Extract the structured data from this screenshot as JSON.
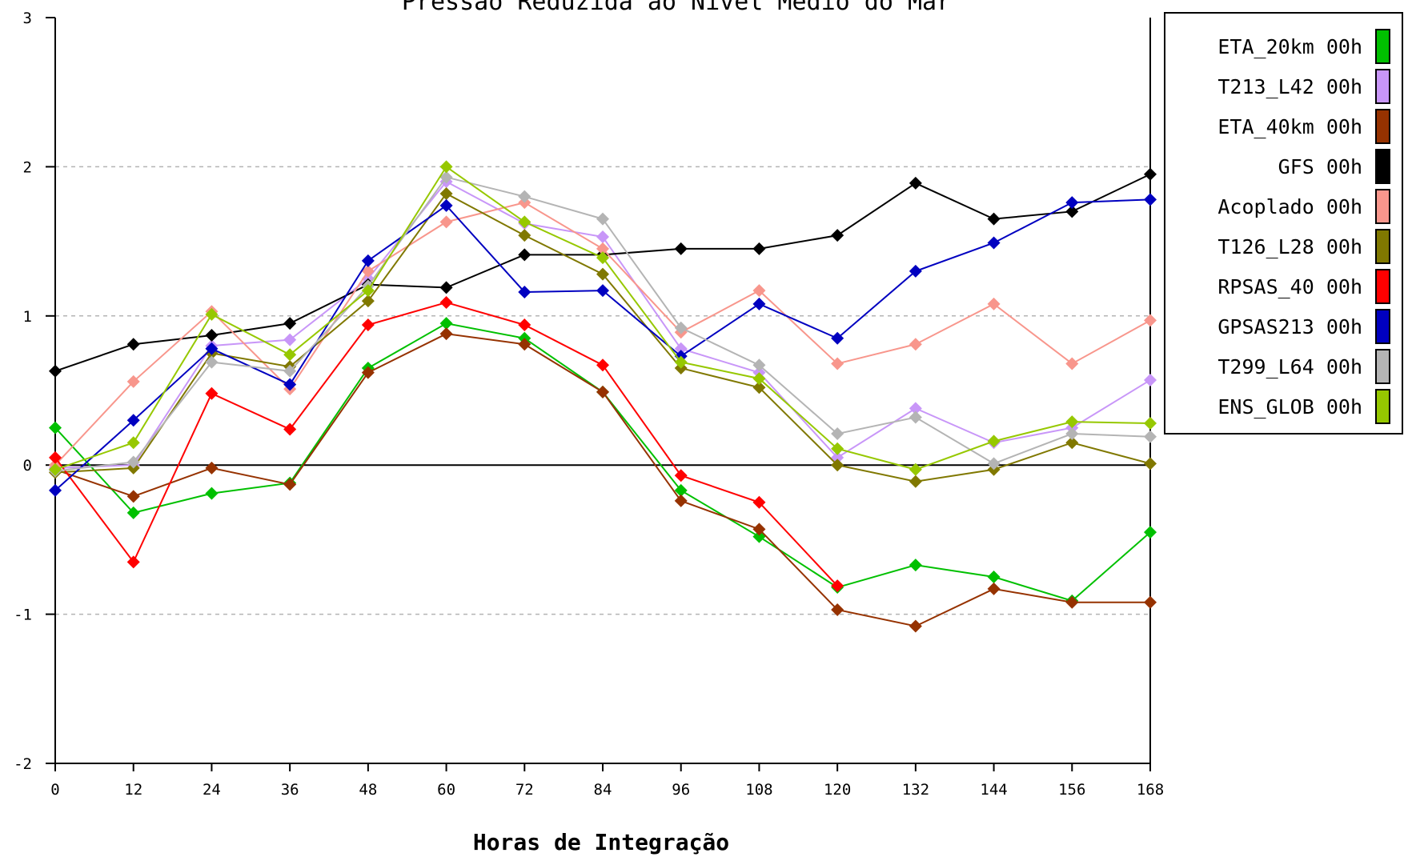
{
  "chart_data": {
    "type": "line",
    "title": "Pressão Reduzida ao Nível Médio do Mar",
    "xlabel": "Horas de Integração",
    "ylabel": "",
    "x": [
      0,
      12,
      24,
      36,
      48,
      60,
      72,
      84,
      96,
      108,
      120,
      132,
      144,
      156,
      168
    ],
    "xlim": [
      0,
      168
    ],
    "ylim": [
      -2,
      3
    ],
    "yticks": [
      -2,
      -1,
      0,
      1,
      2,
      3
    ],
    "grid": "horizontal dashed at -1, 1, 2; solid zero line",
    "legend_position": "right",
    "series": [
      {
        "name": "ETA_20km 00h",
        "color": "#00c000",
        "values": [
          0.25,
          -0.32,
          -0.19,
          -0.12,
          0.65,
          0.95,
          0.85,
          0.49,
          -0.17,
          -0.48,
          -0.82,
          -0.67,
          -0.75,
          -0.91,
          -0.45
        ]
      },
      {
        "name": "T213_L42 00h",
        "color": "#c896f8",
        "values": [
          -0.02,
          0.0,
          0.8,
          0.84,
          1.25,
          1.9,
          1.62,
          1.53,
          0.78,
          0.62,
          0.05,
          0.38,
          0.15,
          0.25,
          0.57
        ]
      },
      {
        "name": "ETA_40km 00h",
        "color": "#963200",
        "values": [
          -0.03,
          -0.21,
          -0.02,
          -0.13,
          0.62,
          0.88,
          0.81,
          0.49,
          -0.24,
          -0.43,
          -0.97,
          -1.08,
          -0.83,
          -0.92,
          -0.92
        ]
      },
      {
        "name": "GFS 00h",
        "color": "#000000",
        "values": [
          0.63,
          0.81,
          0.87,
          0.95,
          1.21,
          1.19,
          1.41,
          1.41,
          1.45,
          1.45,
          1.54,
          1.89,
          1.65,
          1.7,
          1.95
        ]
      },
      {
        "name": "Acoplado 00h",
        "color": "#f8968c",
        "values": [
          0.0,
          0.56,
          1.03,
          0.51,
          1.3,
          1.63,
          1.76,
          1.45,
          0.89,
          1.17,
          0.68,
          0.81,
          1.08,
          0.68,
          0.97
        ]
      },
      {
        "name": "T126_L28 00h",
        "color": "#807800",
        "values": [
          -0.05,
          -0.02,
          0.75,
          0.66,
          1.1,
          1.82,
          1.54,
          1.28,
          0.65,
          0.52,
          0.0,
          -0.11,
          -0.03,
          0.15,
          0.01
        ]
      },
      {
        "name": "RPSAS_40 00h",
        "color": "#ff0000",
        "values": [
          0.05,
          -0.65,
          0.48,
          0.24,
          0.94,
          1.09,
          0.94,
          0.67,
          -0.07,
          -0.25,
          -0.81,
          null,
          null,
          null,
          null
        ]
      },
      {
        "name": "GPSAS213 00h",
        "color": "#0000c0",
        "values": [
          -0.17,
          0.3,
          0.78,
          0.54,
          1.37,
          1.74,
          1.16,
          1.17,
          0.73,
          1.08,
          0.85,
          1.3,
          1.49,
          1.76,
          1.78
        ]
      },
      {
        "name": "T299_L64 00h",
        "color": "#b4b4b4",
        "values": [
          -0.04,
          0.02,
          0.69,
          0.63,
          1.2,
          1.93,
          1.8,
          1.65,
          0.92,
          0.67,
          0.21,
          0.32,
          0.01,
          0.21,
          0.19
        ]
      },
      {
        "name": "ENS_GLOB 00h",
        "color": "#96c800",
        "values": [
          -0.03,
          0.15,
          1.01,
          0.74,
          1.17,
          2.0,
          1.63,
          1.39,
          0.69,
          0.58,
          0.11,
          -0.03,
          0.16,
          0.29,
          0.28
        ]
      }
    ]
  }
}
